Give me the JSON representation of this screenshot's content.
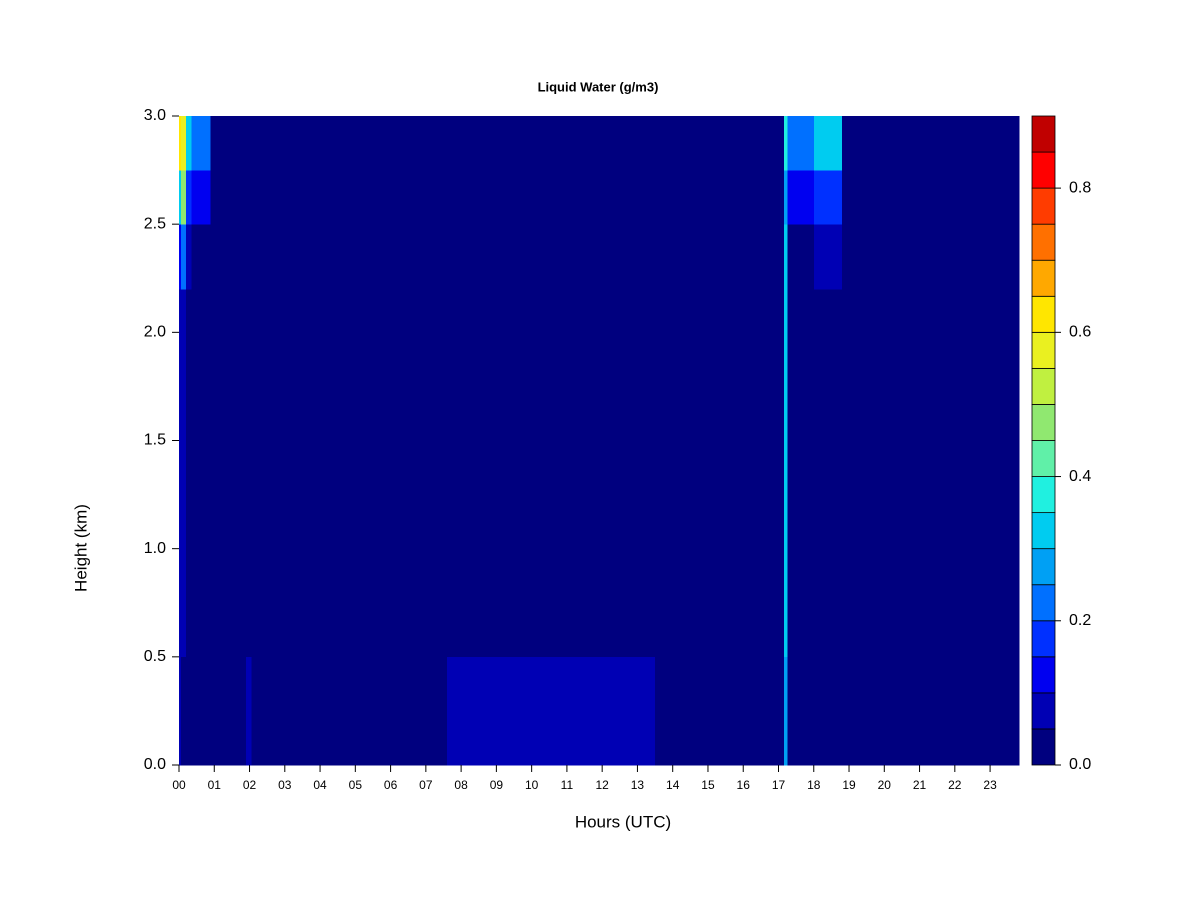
{
  "chart_data": {
    "type": "heatmap",
    "title": "Liquid Water (g/m3)",
    "x_label": "Hours (UTC)",
    "y_label": "Height (km)",
    "x_bins": [
      0,
      0.05,
      0.2,
      0.35,
      0.9,
      1.9,
      2.05,
      7.6,
      13.5,
      17.15,
      17.25,
      18.0,
      18.8,
      23.82
    ],
    "y_bins": [
      0,
      0.5,
      2.2,
      2.5,
      2.75,
      3.0
    ],
    "values": [
      [
        0.06,
        0.04,
        0.03,
        0.02,
        0.02,
        0.06,
        0.02,
        0.07,
        0.02,
        0.25,
        0.02,
        0.03,
        0.02
      ],
      [
        0.06,
        0.06,
        0.03,
        0.02,
        0.02,
        0.04,
        0.02,
        0.02,
        0.02,
        0.3,
        0.02,
        0.02,
        0.02
      ],
      [
        0.12,
        0.2,
        0.05,
        0.03,
        0.02,
        0.02,
        0.02,
        0.02,
        0.02,
        0.3,
        0.03,
        0.08,
        0.02
      ],
      [
        0.3,
        0.45,
        0.15,
        0.1,
        0.02,
        0.02,
        0.02,
        0.02,
        0.02,
        0.25,
        0.1,
        0.18,
        0.02
      ],
      [
        0.62,
        0.58,
        0.3,
        0.22,
        0.02,
        0.04,
        0.02,
        0.02,
        0.02,
        0.35,
        0.2,
        0.32,
        0.02
      ]
    ],
    "xlim": [
      0,
      23.82
    ],
    "ylim": [
      0,
      3.0
    ],
    "xticks": [
      {
        "value": 0,
        "label": "00"
      },
      {
        "value": 1,
        "label": "01"
      },
      {
        "value": 2,
        "label": "02"
      },
      {
        "value": 3,
        "label": "03"
      },
      {
        "value": 4,
        "label": "04"
      },
      {
        "value": 5,
        "label": "05"
      },
      {
        "value": 6,
        "label": "06"
      },
      {
        "value": 7,
        "label": "07"
      },
      {
        "value": 8,
        "label": "08"
      },
      {
        "value": 9,
        "label": "09"
      },
      {
        "value": 10,
        "label": "10"
      },
      {
        "value": 11,
        "label": "11"
      },
      {
        "value": 12,
        "label": "12"
      },
      {
        "value": 13,
        "label": "13"
      },
      {
        "value": 14,
        "label": "14"
      },
      {
        "value": 15,
        "label": "15"
      },
      {
        "value": 16,
        "label": "16"
      },
      {
        "value": 17,
        "label": "17"
      },
      {
        "value": 18,
        "label": "18"
      },
      {
        "value": 19,
        "label": "19"
      },
      {
        "value": 20,
        "label": "20"
      },
      {
        "value": 21,
        "label": "21"
      },
      {
        "value": 22,
        "label": "22"
      },
      {
        "value": 23,
        "label": "23"
      }
    ],
    "yticks": [
      {
        "value": 0,
        "label": "0.0"
      },
      0.5,
      {
        "value": 1,
        "label": "1.0"
      },
      1.5,
      {
        "value": 2,
        "label": "2.0"
      },
      2.5,
      {
        "value": 3,
        "label": "3.0"
      }
    ],
    "colorbar": {
      "levels": [
        0,
        0.05,
        0.1,
        0.15,
        0.2,
        0.25,
        0.3,
        0.35,
        0.4,
        0.45,
        0.5,
        0.55,
        0.6,
        0.65,
        0.7,
        0.75,
        0.8,
        0.85,
        0.9
      ],
      "colors": [
        "#00007f",
        "#0000b4",
        "#0000f0",
        "#0030ff",
        "#0070ff",
        "#00a0f4",
        "#00ccf0",
        "#20f0e0",
        "#60f0a8",
        "#90e870",
        "#c0f040",
        "#eaf020",
        "#ffe600",
        "#ffa800",
        "#ff7000",
        "#ff3c00",
        "#ff0000",
        "#c00000"
      ],
      "ticks": [
        {
          "value": 0,
          "label": "0.0"
        },
        0.2,
        0.4,
        0.6,
        0.8
      ]
    }
  }
}
